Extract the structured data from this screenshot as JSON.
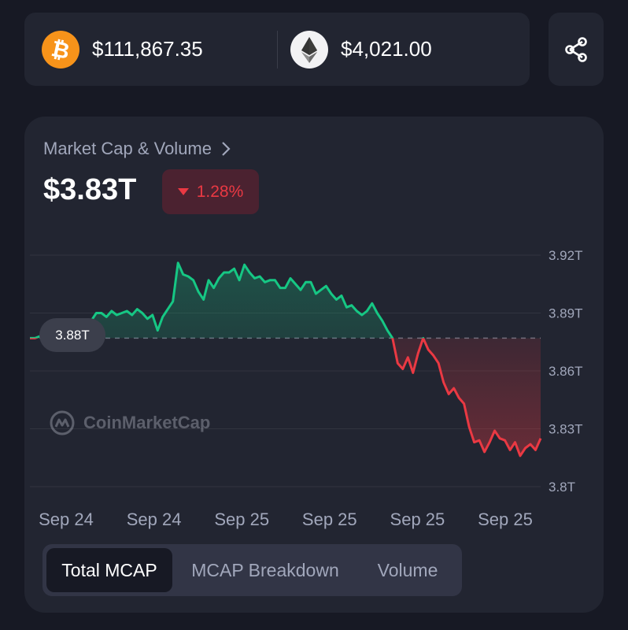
{
  "ticker": {
    "btc": {
      "icon": "bitcoin-icon",
      "price": "$111,867.35",
      "color": "#F7931A"
    },
    "eth": {
      "icon": "ethereum-icon",
      "price": "$4,021.00",
      "color": "#f2f2f4"
    },
    "share_icon": "share-icon"
  },
  "chart_card": {
    "title": "Market Cap & Volume",
    "value": "$3.83T",
    "change": "1.28%",
    "change_direction": "down",
    "watermark": "CoinMarketCap",
    "reference_value_label": "3.88T",
    "colors": {
      "up": "#16c784",
      "down": "#ea3943"
    }
  },
  "chart_data": {
    "type": "line",
    "ylim": [
      3.8,
      3.92
    ],
    "y_ticks": [
      "3.92T",
      "3.89T",
      "3.86T",
      "3.83T",
      "3.8T"
    ],
    "y_tick_values": [
      3.92,
      3.89,
      3.86,
      3.83,
      3.8
    ],
    "x_tick_labels": [
      "Sep 24",
      "Sep 24",
      "Sep 25",
      "Sep 25",
      "Sep 25",
      "Sep 25"
    ],
    "reference_value": 3.877,
    "series": [
      {
        "x": [
          0,
          1,
          2,
          3,
          4,
          5,
          6,
          7,
          8,
          9,
          10,
          11,
          12,
          13,
          14,
          15,
          16,
          17,
          18,
          19,
          20,
          21,
          22,
          23,
          24,
          25,
          26,
          27,
          28,
          29,
          30,
          31,
          32,
          33,
          34,
          35,
          36,
          37,
          38,
          39,
          40,
          41,
          42,
          43,
          44,
          45,
          46,
          47,
          48,
          49,
          50,
          51,
          52,
          53,
          54,
          55,
          56,
          57,
          58,
          59,
          60,
          61,
          62,
          63,
          64,
          65,
          66,
          67,
          68,
          69,
          70,
          71,
          72,
          73,
          74,
          75,
          76,
          77,
          78,
          79,
          80,
          81,
          82,
          83,
          84,
          85,
          86,
          87,
          88,
          89,
          90,
          91,
          92,
          93,
          94,
          95,
          96,
          97,
          98,
          99,
          100
        ],
        "values": [
          3.877,
          3.877,
          3.878,
          3.876,
          3.88,
          3.884,
          3.884,
          3.882,
          3.884,
          3.881,
          3.882,
          3.884,
          3.886,
          3.89,
          3.89,
          3.888,
          3.891,
          3.889,
          3.89,
          3.891,
          3.889,
          3.892,
          3.89,
          3.887,
          3.889,
          3.881,
          3.888,
          3.892,
          3.896,
          3.916,
          3.91,
          3.909,
          3.907,
          3.901,
          3.897,
          3.907,
          3.903,
          3.908,
          3.911,
          3.911,
          3.913,
          3.907,
          3.915,
          3.911,
          3.908,
          3.909,
          3.906,
          3.907,
          3.907,
          3.903,
          3.903,
          3.908,
          3.905,
          3.902,
          3.906,
          3.906,
          3.9,
          3.902,
          3.904,
          3.9,
          3.897,
          3.899,
          3.893,
          3.894,
          3.891,
          3.889,
          3.891,
          3.895,
          3.89,
          3.886,
          3.881,
          3.877,
          3.864,
          3.861,
          3.867,
          3.859,
          3.869,
          3.877,
          3.871,
          3.868,
          3.864,
          3.854,
          3.848,
          3.851,
          3.846,
          3.843,
          3.831,
          3.823,
          3.824,
          3.818,
          3.823,
          3.829,
          3.825,
          3.824,
          3.819,
          3.823,
          3.816,
          3.82,
          3.822,
          3.819,
          3.825
        ]
      }
    ]
  },
  "tabs": [
    {
      "label": "Total MCAP",
      "active": true
    },
    {
      "label": "MCAP Breakdown",
      "active": false
    },
    {
      "label": "Volume",
      "active": false
    }
  ]
}
